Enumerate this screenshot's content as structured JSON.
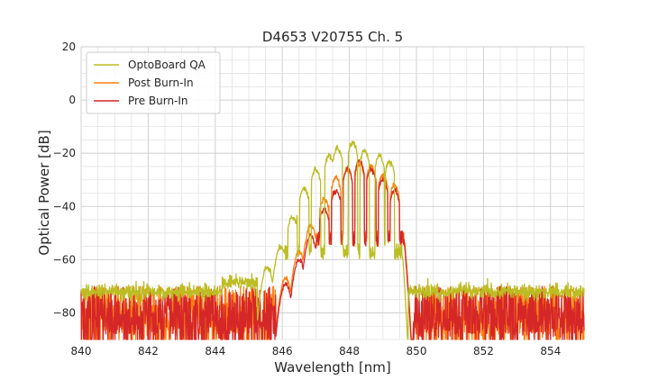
{
  "chart_data": {
    "type": "line",
    "title": "D4653 V20755 Ch. 5",
    "xlabel": "Wavelength [nm]",
    "ylabel": "Optical Power [dB]",
    "xlim": [
      840,
      855
    ],
    "ylim": [
      -90,
      20
    ],
    "xticks": [
      840,
      842,
      844,
      846,
      848,
      850,
      852,
      854
    ],
    "yticks": [
      20,
      0,
      -20,
      -40,
      -60,
      -80
    ],
    "xtick_labels": [
      "840",
      "842",
      "844",
      "846",
      "848",
      "850",
      "852",
      "854"
    ],
    "ytick_labels": [
      "20",
      "0",
      "−20",
      "−40",
      "−60",
      "−80"
    ],
    "grid": true,
    "legend_position": "top-left",
    "series": [
      {
        "name": "OptoBoard QA",
        "color": "#bcbd22",
        "noise_floor": -72,
        "edge_range": [
          845.5,
          849.8
        ],
        "peaks": [
          {
            "x": 845.55,
            "y": -63
          },
          {
            "x": 845.95,
            "y": -55
          },
          {
            "x": 846.3,
            "y": -44
          },
          {
            "x": 846.65,
            "y": -33
          },
          {
            "x": 847.0,
            "y": -26
          },
          {
            "x": 847.4,
            "y": -21
          },
          {
            "x": 847.65,
            "y": -18
          },
          {
            "x": 848.1,
            "y": -16
          },
          {
            "x": 848.45,
            "y": -19
          },
          {
            "x": 848.9,
            "y": -21
          },
          {
            "x": 849.2,
            "y": -23
          }
        ]
      },
      {
        "name": "Post Burn-In",
        "color": "#ff7f0e",
        "noise_floor": -85,
        "edge_range": [
          845.7,
          850.0
        ],
        "peaks": [
          {
            "x": 846.1,
            "y": -67
          },
          {
            "x": 846.5,
            "y": -57
          },
          {
            "x": 846.85,
            "y": -47
          },
          {
            "x": 847.25,
            "y": -37
          },
          {
            "x": 847.6,
            "y": -29
          },
          {
            "x": 847.95,
            "y": -26
          },
          {
            "x": 848.3,
            "y": -24
          },
          {
            "x": 848.65,
            "y": -25
          },
          {
            "x": 849.0,
            "y": -28
          },
          {
            "x": 849.35,
            "y": -32
          }
        ]
      },
      {
        "name": "Pre Burn-In",
        "color": "#d62728",
        "noise_floor": -85,
        "edge_range": [
          845.7,
          850.0
        ],
        "peaks": [
          {
            "x": 846.1,
            "y": -69
          },
          {
            "x": 846.5,
            "y": -60
          },
          {
            "x": 846.85,
            "y": -51
          },
          {
            "x": 847.25,
            "y": -41
          },
          {
            "x": 847.6,
            "y": -34
          },
          {
            "x": 847.95,
            "y": -26
          },
          {
            "x": 848.3,
            "y": -23
          },
          {
            "x": 848.65,
            "y": -26
          },
          {
            "x": 849.0,
            "y": -30
          },
          {
            "x": 849.35,
            "y": -34
          }
        ]
      }
    ]
  }
}
